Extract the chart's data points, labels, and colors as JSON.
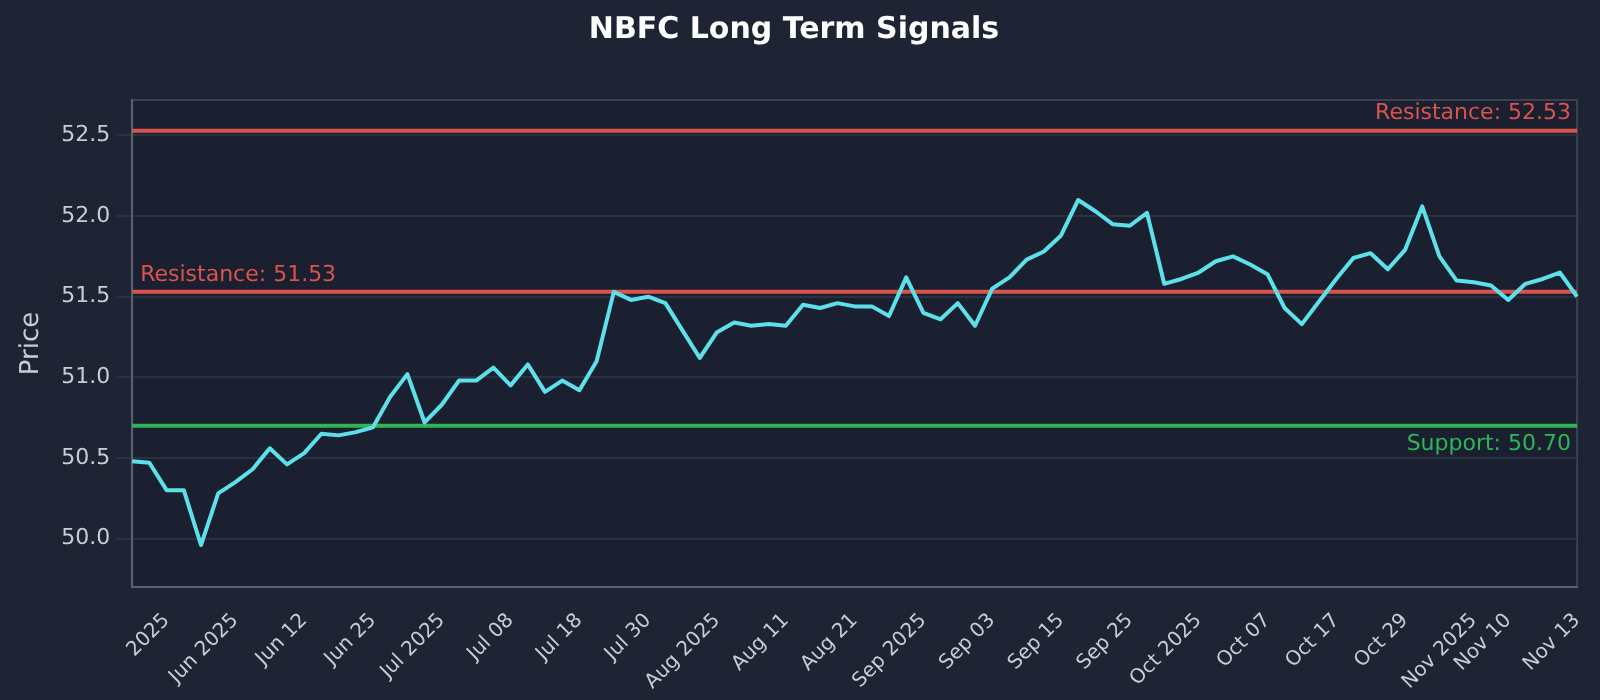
{
  "chart_data": {
    "type": "line",
    "title": "NBFC Long Term Signals",
    "ylabel": "Price",
    "categories": [
      null,
      null,
      "2025",
      null,
      null,
      null,
      "Jun 2025",
      null,
      null,
      null,
      "Jun 12",
      null,
      null,
      null,
      "Jun 25",
      null,
      null,
      null,
      "Jul 2025",
      null,
      null,
      null,
      "Jul 08",
      null,
      null,
      null,
      "Jul 18",
      null,
      null,
      null,
      "Jul 30",
      null,
      null,
      null,
      "Aug 2025",
      null,
      null,
      null,
      "Aug 11",
      null,
      null,
      null,
      "Aug 21",
      null,
      null,
      null,
      "Sep 2025",
      null,
      null,
      null,
      "Sep 03",
      null,
      null,
      null,
      "Sep 15",
      null,
      null,
      null,
      "Sep 25",
      null,
      null,
      null,
      "Oct 2025",
      null,
      null,
      null,
      "Oct 07",
      null,
      null,
      null,
      "Oct 17",
      null,
      null,
      null,
      "Oct 29",
      null,
      null,
      null,
      "Nov 2025",
      null,
      "Nov 10",
      null,
      null,
      null,
      "Nov 13"
    ],
    "series": [
      {
        "color": "#5ce1ea",
        "values": [
          50.48,
          50.47,
          50.3,
          50.3,
          49.96,
          50.28,
          50.35,
          50.43,
          50.56,
          50.46,
          50.53,
          50.65,
          50.64,
          50.66,
          50.69,
          50.88,
          51.02,
          50.72,
          50.83,
          50.98,
          50.98,
          51.06,
          50.95,
          51.08,
          50.91,
          50.98,
          50.92,
          51.1,
          51.53,
          51.48,
          51.5,
          51.46,
          51.29,
          51.12,
          51.28,
          51.34,
          51.32,
          51.33,
          51.32,
          51.45,
          51.43,
          51.46,
          51.44,
          51.44,
          51.38,
          51.62,
          51.4,
          51.36,
          51.46,
          51.32,
          51.55,
          51.62,
          51.73,
          51.78,
          51.88,
          52.1,
          52.03,
          51.95,
          51.94,
          52.02,
          51.58,
          51.61,
          51.65,
          51.72,
          51.75,
          51.7,
          51.64,
          51.43,
          51.33,
          51.47,
          51.61,
          51.74,
          51.77,
          51.67,
          51.79,
          52.06,
          51.75,
          51.6,
          51.59,
          51.57,
          51.48,
          51.58,
          51.61,
          51.65,
          51.5
        ]
      }
    ],
    "ylim": [
      49.7,
      52.72
    ],
    "yticks": [
      {
        "value": 50,
        "label": "50.0"
      },
      50.5,
      {
        "value": 51,
        "label": "51.0"
      },
      51.5,
      {
        "value": 52,
        "label": "52.0"
      },
      52.5
    ],
    "ref_lines": [
      {
        "axis": "y",
        "value": 52.53,
        "label": "Resistance: 52.53",
        "color": "#d9534f"
      },
      {
        "axis": "y",
        "value": 51.53,
        "label": "Resistance: 51.53",
        "color": "#d9534f"
      },
      {
        "axis": "y",
        "value": 50.7,
        "label": "Support: 50.70",
        "color": "#2fb457"
      }
    ],
    "grid": "y",
    "legend": false,
    "marker": "none",
    "line_style": "solid"
  }
}
